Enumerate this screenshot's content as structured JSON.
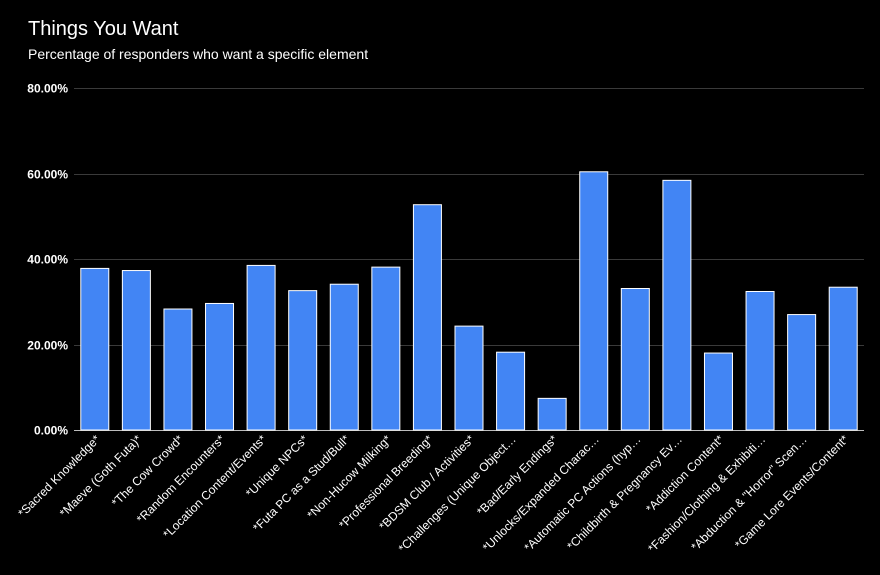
{
  "chart_data": {
    "type": "bar",
    "title": "Things You Want",
    "subtitle": "Percentage of responders who want a specific element",
    "xlabel": "",
    "ylabel": "",
    "ylim": [
      0,
      80
    ],
    "yticks": [
      0,
      20,
      40,
      60,
      80
    ],
    "ytick_labels": [
      "0.00%",
      "20.00%",
      "40.00%",
      "60.00%",
      "80.00%"
    ],
    "bar_color": "#4285f4",
    "grid": true,
    "legend": "none",
    "categories": [
      "*Sacred Knowledge*",
      "*Maeve (Goth Futa)*",
      "*The Cow Crowd*",
      "*Random Encounters*",
      "*Location Content/Events*",
      "*Unique NPCs*",
      "*Futa PC as a Stud/Bull*",
      "*Non-Hucow Milking*",
      "*Professional Breeding*",
      "*BDSM Club / Activities*",
      "*Challenges (Unique Object…",
      "*Bad/Early Endings*",
      "*Unlocks/Expanded Charac…",
      "*Automatic PC Actions (hyp…",
      "*Childbirth & Pregnancy Ev…",
      "*Addiction Content*",
      "*Fashion/Clothing & Exhibiti…",
      "*Abduction & \"Horror\" Scen…",
      "*Game Lore Events/Content*"
    ],
    "values": [
      37.8,
      37.3,
      28.3,
      29.6,
      38.5,
      32.6,
      34.1,
      38.1,
      52.7,
      24.3,
      18.2,
      7.4,
      60.4,
      33.1,
      58.4,
      18.0,
      32.4,
      27.0,
      33.4
    ]
  }
}
